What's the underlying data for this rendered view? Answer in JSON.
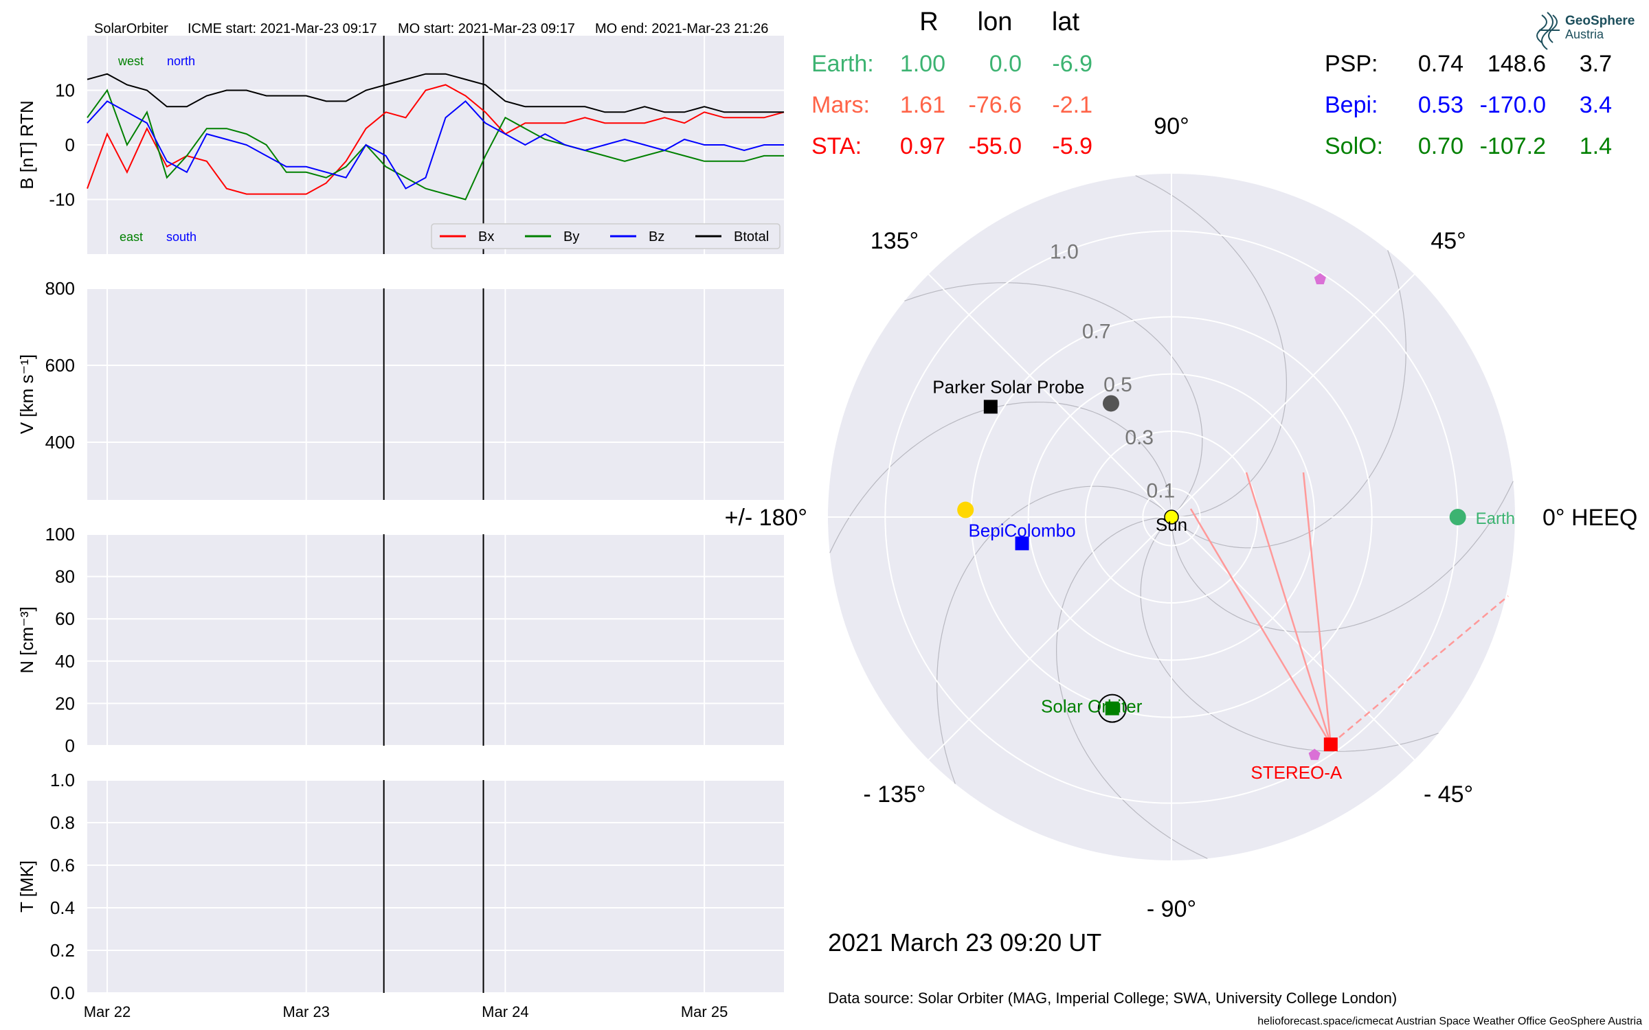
{
  "header": {
    "spacecraft": "SolarOrbiter",
    "icme_start": "ICME start: 2021-Mar-23 09:17",
    "mo_start": "MO start: 2021-Mar-23 09:17",
    "mo_end": "MO end: 2021-Mar-23 21:26"
  },
  "logo": {
    "line1": "GeoSphere",
    "line2": "Austria"
  },
  "timestamp": "2021 March 23  09:20 UT",
  "data_source": "Data source: Solar Orbiter (MAG, Imperial College; SWA, University College London)",
  "footer": "helioforecast.space/icmecat   Austrian Space Weather Office   GeoSphere Austria",
  "colors": {
    "bx": "#ff0000",
    "by": "#008000",
    "bz": "#0000ff",
    "btotal": "#000000",
    "earth": "#3cb371",
    "mars": "#ff6347",
    "sta": "#ff0000",
    "psp": "#000000",
    "bepi": "#0000ff",
    "solo": "#008000",
    "panel_bg": "#eaeaf2",
    "grid": "#ffffff"
  },
  "position_table": {
    "headers": [
      "R",
      "lon",
      "lat"
    ],
    "left": [
      {
        "name": "Earth:",
        "r": "1.00",
        "lon": "0.0",
        "lat": "-6.9",
        "color": "#3cb371"
      },
      {
        "name": "Mars:",
        "r": "1.61",
        "lon": "-76.6",
        "lat": "-2.1",
        "color": "#ff6347"
      },
      {
        "name": "STA:",
        "r": "0.97",
        "lon": "-55.0",
        "lat": "-5.9",
        "color": "#ff0000"
      }
    ],
    "right": [
      {
        "name": "PSP:",
        "r": "0.74",
        "lon": "148.6",
        "lat": "3.7",
        "color": "#000000"
      },
      {
        "name": "Bepi:",
        "r": "0.53",
        "lon": "-170.0",
        "lat": "3.4",
        "color": "#0000ff"
      },
      {
        "name": "SolO:",
        "r": "0.70",
        "lon": "-107.2",
        "lat": "1.4",
        "color": "#008000"
      }
    ]
  },
  "chart_data": [
    {
      "type": "line",
      "panel": "magnetic_field",
      "ylabel": "B [nT] RTN",
      "ylim": [
        -20,
        20
      ],
      "yticks": [
        -10,
        0,
        10
      ],
      "x_ticks": [
        "Mar 22",
        "Mar 23",
        "Mar 24",
        "Mar 25"
      ],
      "x_tick_day": [
        22,
        23,
        24,
        25
      ],
      "xlim_day": [
        21.9,
        25.4
      ],
      "vlines_day": [
        23.39,
        23.89
      ],
      "annotations": {
        "west": "west",
        "north": "north",
        "east": "east",
        "south": "south"
      },
      "legend": [
        "Bx",
        "By",
        "Bz",
        "Btotal"
      ],
      "legend_position": "lower-right",
      "x": [
        21.9,
        22.0,
        22.1,
        22.2,
        22.3,
        22.4,
        22.5,
        22.6,
        22.7,
        22.8,
        22.9,
        23.0,
        23.1,
        23.2,
        23.3,
        23.4,
        23.5,
        23.6,
        23.7,
        23.8,
        23.9,
        24.0,
        24.1,
        24.2,
        24.3,
        24.4,
        24.5,
        24.6,
        24.7,
        24.8,
        24.9,
        25.0,
        25.1,
        25.2,
        25.3,
        25.4
      ],
      "series": [
        {
          "name": "Bx",
          "values": [
            -8,
            2,
            -5,
            3,
            -4,
            -2,
            -3,
            -8,
            -9,
            -9,
            -9,
            -9,
            -7,
            -3,
            3,
            6,
            5,
            10,
            11,
            9,
            6,
            2,
            4,
            4,
            4,
            5,
            4,
            4,
            4,
            5,
            4,
            6,
            5,
            5,
            5,
            6
          ]
        },
        {
          "name": "By",
          "values": [
            5,
            10,
            0,
            6,
            -6,
            -2,
            3,
            3,
            2,
            0,
            -5,
            -5,
            -6,
            -4,
            0,
            -4,
            -6,
            -8,
            -9,
            -10,
            -2,
            5,
            3,
            1,
            0,
            -1,
            -2,
            -3,
            -2,
            -1,
            -2,
            -3,
            -3,
            -3,
            -2,
            -2
          ]
        },
        {
          "name": "Bz",
          "values": [
            4,
            8,
            6,
            4,
            -3,
            -5,
            2,
            1,
            0,
            -2,
            -4,
            -4,
            -5,
            -6,
            0,
            -2,
            -8,
            -6,
            5,
            8,
            4,
            2,
            0,
            2,
            0,
            -1,
            0,
            1,
            0,
            -1,
            1,
            0,
            0,
            -1,
            0,
            0
          ]
        },
        {
          "name": "Btotal",
          "values": [
            12,
            13,
            11,
            10,
            7,
            7,
            9,
            10,
            10,
            9,
            9,
            9,
            8,
            8,
            10,
            11,
            12,
            13,
            13,
            12,
            11,
            8,
            7,
            7,
            7,
            7,
            6,
            6,
            7,
            6,
            6,
            7,
            6,
            6,
            6,
            6
          ]
        }
      ]
    },
    {
      "type": "line",
      "panel": "velocity",
      "ylabel": "V [km s⁻¹]",
      "ylim": [
        250,
        800
      ],
      "yticks": [
        400,
        600,
        800
      ],
      "series": []
    },
    {
      "type": "line",
      "panel": "density",
      "ylabel": "N [cm⁻³]",
      "ylim": [
        0,
        100
      ],
      "yticks": [
        0,
        20,
        40,
        60,
        80,
        100
      ],
      "series": []
    },
    {
      "type": "line",
      "panel": "temperature",
      "ylabel": "T [MK]",
      "ylim": [
        0,
        1
      ],
      "yticks": [
        "0.0",
        "0.2",
        "0.4",
        "0.6",
        "0.8",
        "1.0"
      ],
      "series": []
    },
    {
      "type": "scatter",
      "panel": "polar_heeq",
      "r_max": 1.2,
      "r_ticks": [
        "0.1",
        "0.3",
        "0.5",
        "0.7",
        "1.0"
      ],
      "r_tick_values": [
        0.1,
        0.3,
        0.5,
        0.7,
        1.0
      ],
      "angle_labels": [
        {
          "text": "0° HEEQ",
          "deg": 0
        },
        {
          "text": "45°",
          "deg": 45
        },
        {
          "text": "90°",
          "deg": 90
        },
        {
          "text": "135°",
          "deg": 135
        },
        {
          "text": "+/- 180°",
          "deg": 180
        },
        {
          "text": "- 135°",
          "deg": -135
        },
        {
          "text": "- 90°",
          "deg": -90
        },
        {
          "text": "- 45°",
          "deg": -45
        }
      ],
      "bodies": [
        {
          "label": "Sun",
          "r": 0.0,
          "lon": 0.0,
          "marker": "circle",
          "color": "#ffff00",
          "size": 10
        },
        {
          "label": "Earth",
          "r": 1.0,
          "lon": 0.0,
          "marker": "circle",
          "color": "#3cb371",
          "size": 12
        },
        {
          "label": "",
          "r": 1.61,
          "lon": -76.6,
          "marker": "circle",
          "color": "#ff6347",
          "size": 12
        },
        {
          "label": "STEREO-A",
          "r": 0.97,
          "lon": -55.0,
          "marker": "square",
          "color": "#ff0000",
          "size": 12
        },
        {
          "label": "Parker Solar Probe",
          "r": 0.74,
          "lon": 148.6,
          "marker": "square",
          "color": "#000000",
          "size": 12
        },
        {
          "label": "BepiColombo",
          "r": 0.53,
          "lon": -170.0,
          "marker": "square",
          "color": "#0000ff",
          "size": 12
        },
        {
          "label": "Solar Orbiter",
          "r": 0.7,
          "lon": -107.2,
          "marker": "square",
          "color": "#008000",
          "size": 12
        }
      ],
      "other_markers": [
        {
          "r": 0.72,
          "lon": 178.0,
          "marker": "circle",
          "color": "#ffd700"
        },
        {
          "r": 0.45,
          "lon": 118.0,
          "marker": "circle",
          "color": "#555555"
        },
        {
          "r": 0.98,
          "lon": 58.0,
          "marker": "pentagon",
          "color": "#da70d6"
        },
        {
          "r": 0.97,
          "lon": -59.0,
          "marker": "pentagon",
          "color": "#da70d6"
        }
      ]
    }
  ]
}
